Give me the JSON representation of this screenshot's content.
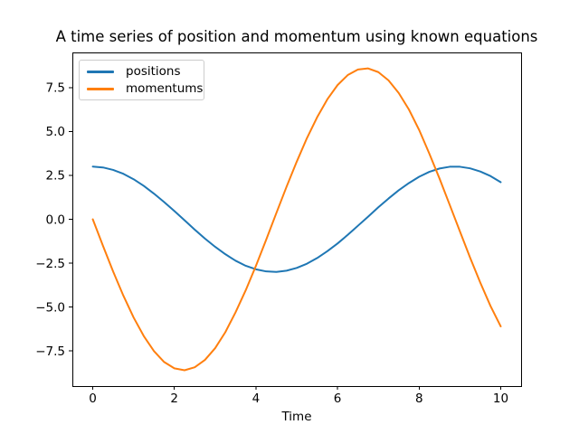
{
  "figure": {
    "background": "#ffffff",
    "text_color": "#000000",
    "spine_color": "#000000"
  },
  "chart_data": {
    "type": "line",
    "title": "A time series of position and momentum using known equations",
    "xlabel": "Time",
    "ylabel": "",
    "grid": false,
    "legend": {
      "position": "upper left",
      "entries": [
        "positions",
        "momentums"
      ]
    },
    "xlim": [
      -0.5,
      10.5
    ],
    "ylim": [
      -9.5,
      9.5
    ],
    "xticks": {
      "values": [
        0,
        2,
        4,
        6,
        8,
        10
      ],
      "labels": [
        "0",
        "2",
        "4",
        "6",
        "8",
        "10"
      ]
    },
    "yticks": {
      "values": [
        7.5,
        5.0,
        2.5,
        0.0,
        -2.5,
        -5.0,
        -7.5
      ],
      "labels": [
        "7.5",
        "5.0",
        "2.5",
        "0.0",
        "−2.5",
        "−5.0",
        "−7.5"
      ]
    },
    "x": [
      0,
      0.25,
      0.5,
      0.75,
      1,
      1.25,
      1.5,
      1.75,
      2,
      2.25,
      2.5,
      2.75,
      3,
      3.25,
      3.5,
      3.75,
      4,
      4.25,
      4.5,
      4.75,
      5,
      5.25,
      5.5,
      5.75,
      6,
      6.25,
      6.5,
      6.75,
      7,
      7.25,
      7.5,
      7.75,
      8,
      8.25,
      8.5,
      8.75,
      9,
      9.25,
      9.5,
      9.75,
      10
    ],
    "series": [
      {
        "name": "positions",
        "color": "#1f77b4",
        "values": [
          3.0,
          2.95,
          2.81,
          2.59,
          2.28,
          1.9,
          1.46,
          0.98,
          0.47,
          -0.06,
          -0.59,
          -1.1,
          -1.57,
          -1.99,
          -2.36,
          -2.65,
          -2.85,
          -2.97,
          -3.0,
          -2.93,
          -2.77,
          -2.53,
          -2.21,
          -1.82,
          -1.38,
          -0.89,
          -0.37,
          0.15,
          0.68,
          1.18,
          1.65,
          2.06,
          2.42,
          2.7,
          2.89,
          2.99,
          2.99,
          2.9,
          2.72,
          2.46,
          2.11
        ]
      },
      {
        "name": "momentums",
        "color": "#ff7f0e",
        "values": [
          0.0,
          -1.51,
          -2.98,
          -4.35,
          -5.59,
          -6.65,
          -7.51,
          -8.13,
          -8.49,
          -8.6,
          -8.43,
          -8.01,
          -7.34,
          -6.43,
          -5.3,
          -4.04,
          -2.65,
          -1.17,
          0.35,
          1.85,
          3.28,
          4.62,
          5.81,
          6.83,
          7.64,
          8.21,
          8.53,
          8.59,
          8.38,
          7.91,
          7.19,
          6.25,
          5.09,
          3.74,
          2.32,
          0.82,
          -0.69,
          -2.19,
          -3.61,
          -4.94,
          -6.1
        ]
      }
    ]
  }
}
